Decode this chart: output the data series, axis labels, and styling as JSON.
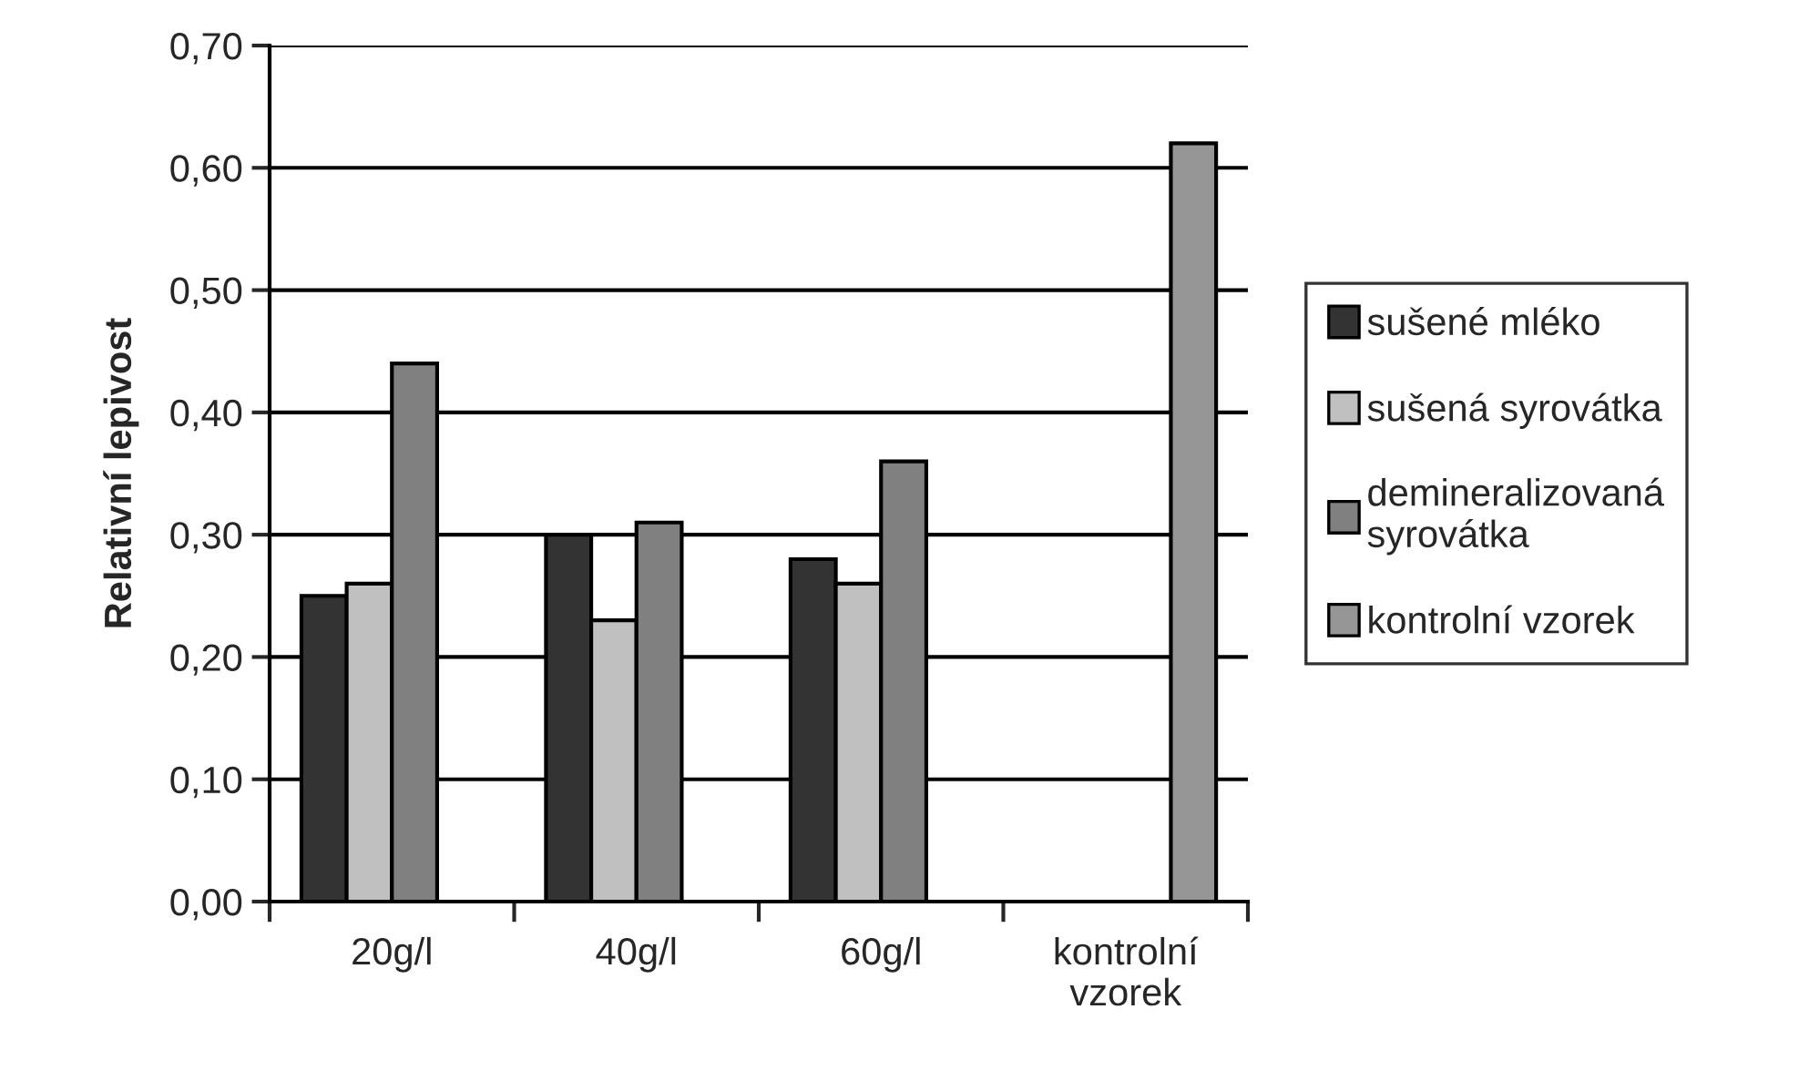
{
  "chart_data": {
    "type": "bar",
    "ylabel": "Relativní lepivost",
    "categories": [
      "20g/l",
      "40g/l",
      "60g/l",
      "kontrolní\nvzorek"
    ],
    "series": [
      {
        "name": "sušené mléko",
        "color": "#333333",
        "values": [
          0.25,
          0.3,
          0.28,
          null
        ]
      },
      {
        "name": "sušená syrovátka",
        "color": "#c0c0c0",
        "values": [
          0.26,
          0.23,
          0.26,
          null
        ]
      },
      {
        "name": "demineralizovaná\nsyrovátka",
        "color": "#808080",
        "values": [
          0.44,
          0.31,
          0.36,
          null
        ]
      },
      {
        "name": "kontrolní vzorek",
        "color": "#969696",
        "values": [
          null,
          null,
          null,
          0.62
        ]
      }
    ],
    "ylim": [
      0,
      0.7
    ],
    "yticks": [
      {
        "value": 0,
        "label": "0,00"
      },
      {
        "value": 0.1,
        "label": "0,10"
      },
      {
        "value": 0.2,
        "label": "0,20"
      },
      {
        "value": 0.3,
        "label": "0,30"
      },
      {
        "value": 0.4,
        "label": "0,40"
      },
      {
        "value": 0.5,
        "label": "0,50"
      },
      {
        "value": 0.6,
        "label": "0,60"
      },
      {
        "value": 0.7,
        "label": "0,70"
      }
    ],
    "grid": "y",
    "legend": "right"
  }
}
